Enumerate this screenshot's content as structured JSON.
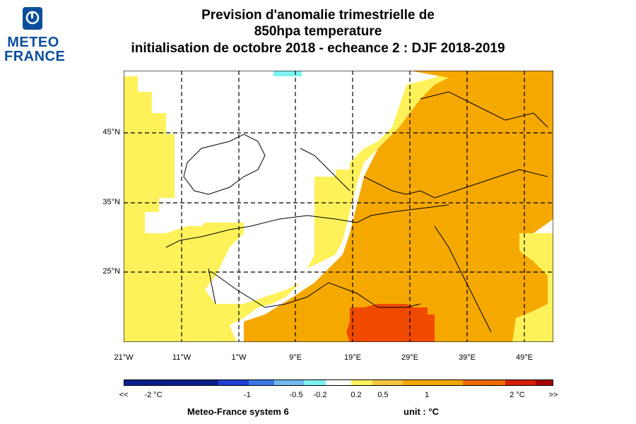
{
  "logo": {
    "line1": "METEO",
    "line2": "FRANCE"
  },
  "title": {
    "line1": "Prevision d'anomalie trimestrielle de",
    "line2": "850hpa temperature",
    "line3": "initialisation de octobre 2018  -  echeance 2 : DJF 2018-2019"
  },
  "axes": {
    "y_ticks": [
      "45°N",
      "35°N",
      "25°N"
    ],
    "x_ticks": [
      "21°W",
      "11°W",
      "1°W",
      "9°E",
      "19°E",
      "29°E",
      "39°E",
      "49°E"
    ]
  },
  "colorbar": {
    "colors": [
      "#0a1f8f",
      "#1f3fd6",
      "#3a78e6",
      "#73b8f0",
      "#7ef2f2",
      "#ffffff",
      "#fff15a",
      "#f5c542",
      "#f5a800",
      "#f06a00",
      "#d81e05",
      "#a80000"
    ],
    "labels": [
      "<<",
      "-2 °C",
      "-1",
      "-0.5",
      "-0.2",
      "0.2",
      "0.5",
      "1",
      "2 °C",
      ">>"
    ]
  },
  "footer": {
    "system": "Meteo-France system 6",
    "unit": "unit :  °C"
  }
}
